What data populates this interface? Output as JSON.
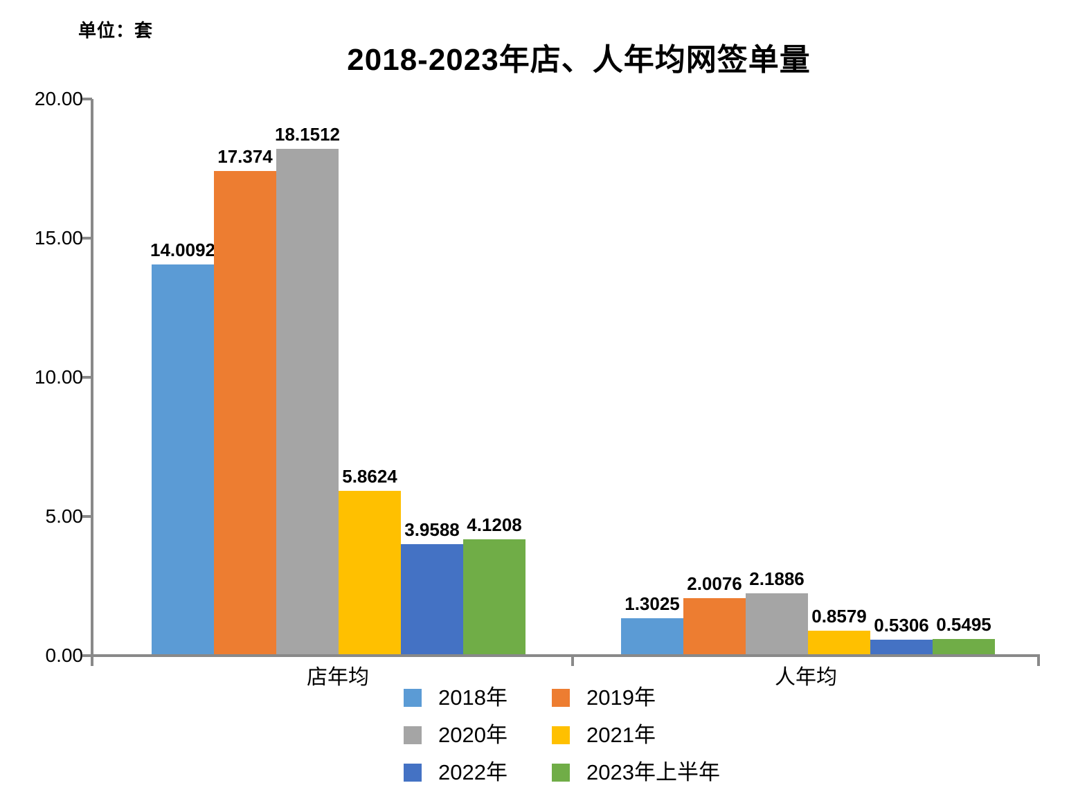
{
  "chart_data": {
    "type": "bar",
    "title": "2018-2023年店、人年均网签单量",
    "unit_label": "单位：套",
    "categories": [
      "店年均",
      "人年均"
    ],
    "series": [
      {
        "name": "2018年",
        "color": "#5B9BD5",
        "values": [
          14.0092,
          1.3025
        ],
        "labels": [
          "14.0092",
          "1.3025"
        ]
      },
      {
        "name": "2019年",
        "color": "#ED7D31",
        "values": [
          17.374,
          2.0076
        ],
        "labels": [
          "17.374",
          "2.0076"
        ]
      },
      {
        "name": "2020年",
        "color": "#A5A5A5",
        "values": [
          18.1512,
          2.1886
        ],
        "labels": [
          "18.1512",
          "2.1886"
        ]
      },
      {
        "name": "2021年",
        "color": "#FFC000",
        "values": [
          5.8624,
          0.8579
        ],
        "labels": [
          "5.8624",
          "0.8579"
        ]
      },
      {
        "name": "2022年",
        "color": "#4472C4",
        "values": [
          3.9588,
          0.5306
        ],
        "labels": [
          "3.9588",
          "0.5306"
        ]
      },
      {
        "name": "2023年上半年",
        "color": "#70AD47",
        "values": [
          4.1208,
          0.5495
        ],
        "labels": [
          "4.1208",
          "0.5495"
        ]
      }
    ],
    "ylim": [
      0,
      20
    ],
    "yticks": [
      {
        "value": 0,
        "label": "0.00"
      },
      {
        "value": 5,
        "label": "5.00"
      },
      {
        "value": 10,
        "label": "10.00"
      },
      {
        "value": 15,
        "label": "15.00"
      },
      {
        "value": 20,
        "label": "20.00"
      }
    ],
    "grid": false,
    "legend_position": "bottom",
    "legend_rows": [
      [
        0,
        1
      ],
      [
        2,
        3
      ],
      [
        4,
        5
      ]
    ],
    "axis_color": "#898989"
  }
}
